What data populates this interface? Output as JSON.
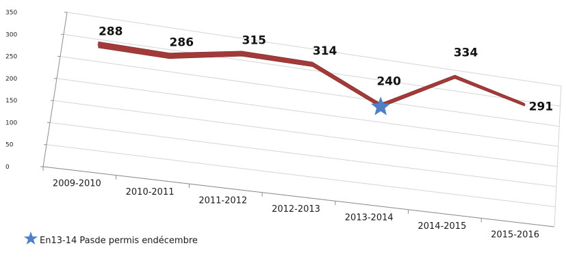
{
  "chart_data": {
    "type": "line",
    "title": "",
    "xlabel": "",
    "ylabel": "",
    "categories": [
      "2009-2010",
      "2010-2011",
      "2011-2012",
      "2012-2013",
      "2013-2014",
      "2014-2015",
      "2015-2016"
    ],
    "series": [
      {
        "values": [
          288,
          286,
          315,
          314,
          240,
          334,
          291
        ],
        "color": "#a23a3a"
      }
    ],
    "data_labels": [
      "288",
      "286",
      "315",
      "314",
      "240",
      "334",
      "291"
    ],
    "yticks": [
      "0",
      "50",
      "100",
      "150",
      "200",
      "250",
      "300",
      "350"
    ],
    "ylim": [
      0,
      350
    ],
    "grid": true,
    "perspective": "3d",
    "annotation": {
      "category": "2013-2014",
      "marker": "star-icon",
      "marker_color": "#4f7fc4"
    }
  },
  "legend": {
    "marker": "star-icon",
    "color": "#4f7fc4",
    "text": "En13-14 Pasde permis endécembre"
  }
}
